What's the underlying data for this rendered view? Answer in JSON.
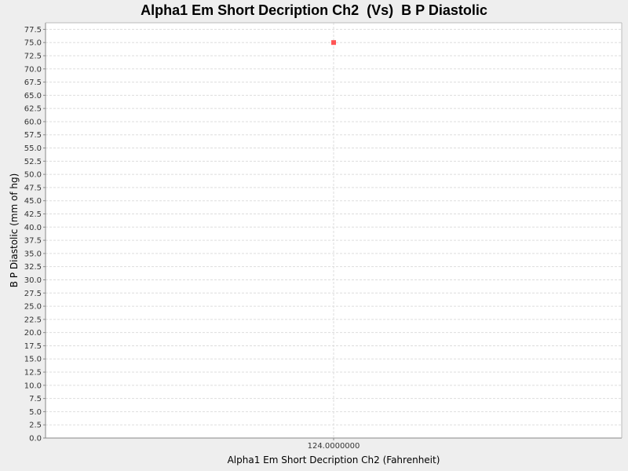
{
  "chart_data": {
    "type": "scatter",
    "title": "Alpha1 Em Short Decription Ch2  (Vs)  B P Diastolic",
    "xlabel": "Alpha1 Em Short Decription Ch2 (Fahrenheit)",
    "ylabel": "B P Diastolic (mm of hg)",
    "x_tick_labels": [
      "124.0000000"
    ],
    "y_tick_labels": [
      "0.0",
      "2.5",
      "5.0",
      "7.5",
      "10.0",
      "12.5",
      "15.0",
      "17.5",
      "20.0",
      "22.5",
      "25.0",
      "27.5",
      "30.0",
      "32.5",
      "35.0",
      "37.5",
      "40.0",
      "42.5",
      "45.0",
      "47.5",
      "50.0",
      "52.5",
      "55.0",
      "57.5",
      "60.0",
      "62.5",
      "65.0",
      "67.5",
      "70.0",
      "72.5",
      "75.0",
      "77.5"
    ],
    "ylim": [
      0,
      78.75
    ],
    "grid": true,
    "points": [
      {
        "x": 124.0,
        "y": 75.0
      }
    ],
    "colors": {
      "point": "#ff5555",
      "grid": "#dddddd",
      "plot_background": "#ffffff",
      "axis": "#888888"
    }
  }
}
